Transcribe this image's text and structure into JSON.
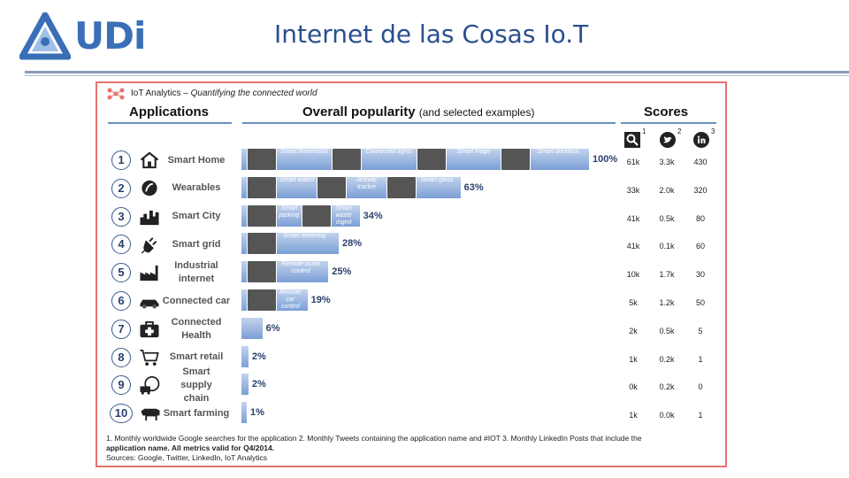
{
  "header": {
    "logo_text": "UDi",
    "title": "Internet de las Cosas Io.T"
  },
  "infographic": {
    "brand": "IoT Analytics",
    "tagline": "Quantifying the connected world",
    "col_applications": "Applications",
    "col_popularity": "Overall popularity",
    "col_popularity_note": "(and selected examples)",
    "col_scores": "Scores",
    "score_superscripts": [
      "1",
      "2",
      "3"
    ],
    "score_icons": [
      "search-icon",
      "twitter-icon",
      "linkedin-icon"
    ],
    "rows": [
      {
        "rank": "1",
        "name": "Smart Home",
        "icon": "house-icon",
        "pct": "100%",
        "value": 100,
        "google": "61k",
        "twitter": "3.3k",
        "linkedin": "430",
        "examples": [
          "Smart thermostat",
          "Connected lights",
          "Smart fridge",
          "Smart doorlock"
        ]
      },
      {
        "rank": "2",
        "name": "Wearables",
        "icon": "wearable-icon",
        "pct": "63%",
        "value": 63,
        "google": "33k",
        "twitter": "2.0k",
        "linkedin": "320",
        "examples": [
          "Smart watch",
          "Activity tracker",
          "Smart glass"
        ]
      },
      {
        "rank": "3",
        "name": "Smart City",
        "icon": "city-icon",
        "pct": "34%",
        "value": 34,
        "google": "41k",
        "twitter": "0.5k",
        "linkedin": "80",
        "examples": [
          "Smart parking",
          "Smart waste mgmt"
        ]
      },
      {
        "rank": "4",
        "name": "Smart grid",
        "icon": "plug-icon",
        "pct": "28%",
        "value": 28,
        "google": "41k",
        "twitter": "0.1k",
        "linkedin": "60",
        "examples": [
          "Smart metering"
        ]
      },
      {
        "rank": "5",
        "name": "Industrial internet",
        "icon": "factory-icon",
        "pct": "25%",
        "value": 25,
        "google": "10k",
        "twitter": "1.7k",
        "linkedin": "30",
        "examples": [
          "Remote asset control"
        ]
      },
      {
        "rank": "6",
        "name": "Connected car",
        "icon": "car-icon",
        "pct": "19%",
        "value": 19,
        "google": "5k",
        "twitter": "1.2k",
        "linkedin": "50",
        "examples": [
          "Remote car control"
        ]
      },
      {
        "rank": "7",
        "name": "Connected Health",
        "icon": "medical-kit-icon",
        "pct": "6%",
        "value": 6,
        "google": "2k",
        "twitter": "0.5k",
        "linkedin": "5",
        "examples": []
      },
      {
        "rank": "8",
        "name": "Smart retail",
        "icon": "cart-icon",
        "pct": "2%",
        "value": 2,
        "google": "1k",
        "twitter": "0.2k",
        "linkedin": "1",
        "examples": []
      },
      {
        "rank": "9",
        "name": "Smart supply chain",
        "icon": "supply-chain-icon",
        "pct": "2%",
        "value": 2,
        "google": "0k",
        "twitter": "0.2k",
        "linkedin": "0",
        "examples": []
      },
      {
        "rank": "10",
        "name": "Smart farming",
        "icon": "cow-icon",
        "pct": "1%",
        "value": 1,
        "google": "1k",
        "twitter": "0.0k",
        "linkedin": "1",
        "examples": []
      }
    ],
    "footnote_1": "1. Monthly worldwide Google searches for the application  2. Monthly Tweets containing the application name and #IOT  3. Monthly LinkedIn Posts that include the",
    "footnote_2": "application name.  All metrics valid for Q4/2014.",
    "footnote_3": "Sources: Google, Twitter, LinkedIn, IoT Analytics"
  },
  "colors": {
    "frame": "#e8736c",
    "bar": "#7a9fd6",
    "title": "#2a4f8f"
  }
}
